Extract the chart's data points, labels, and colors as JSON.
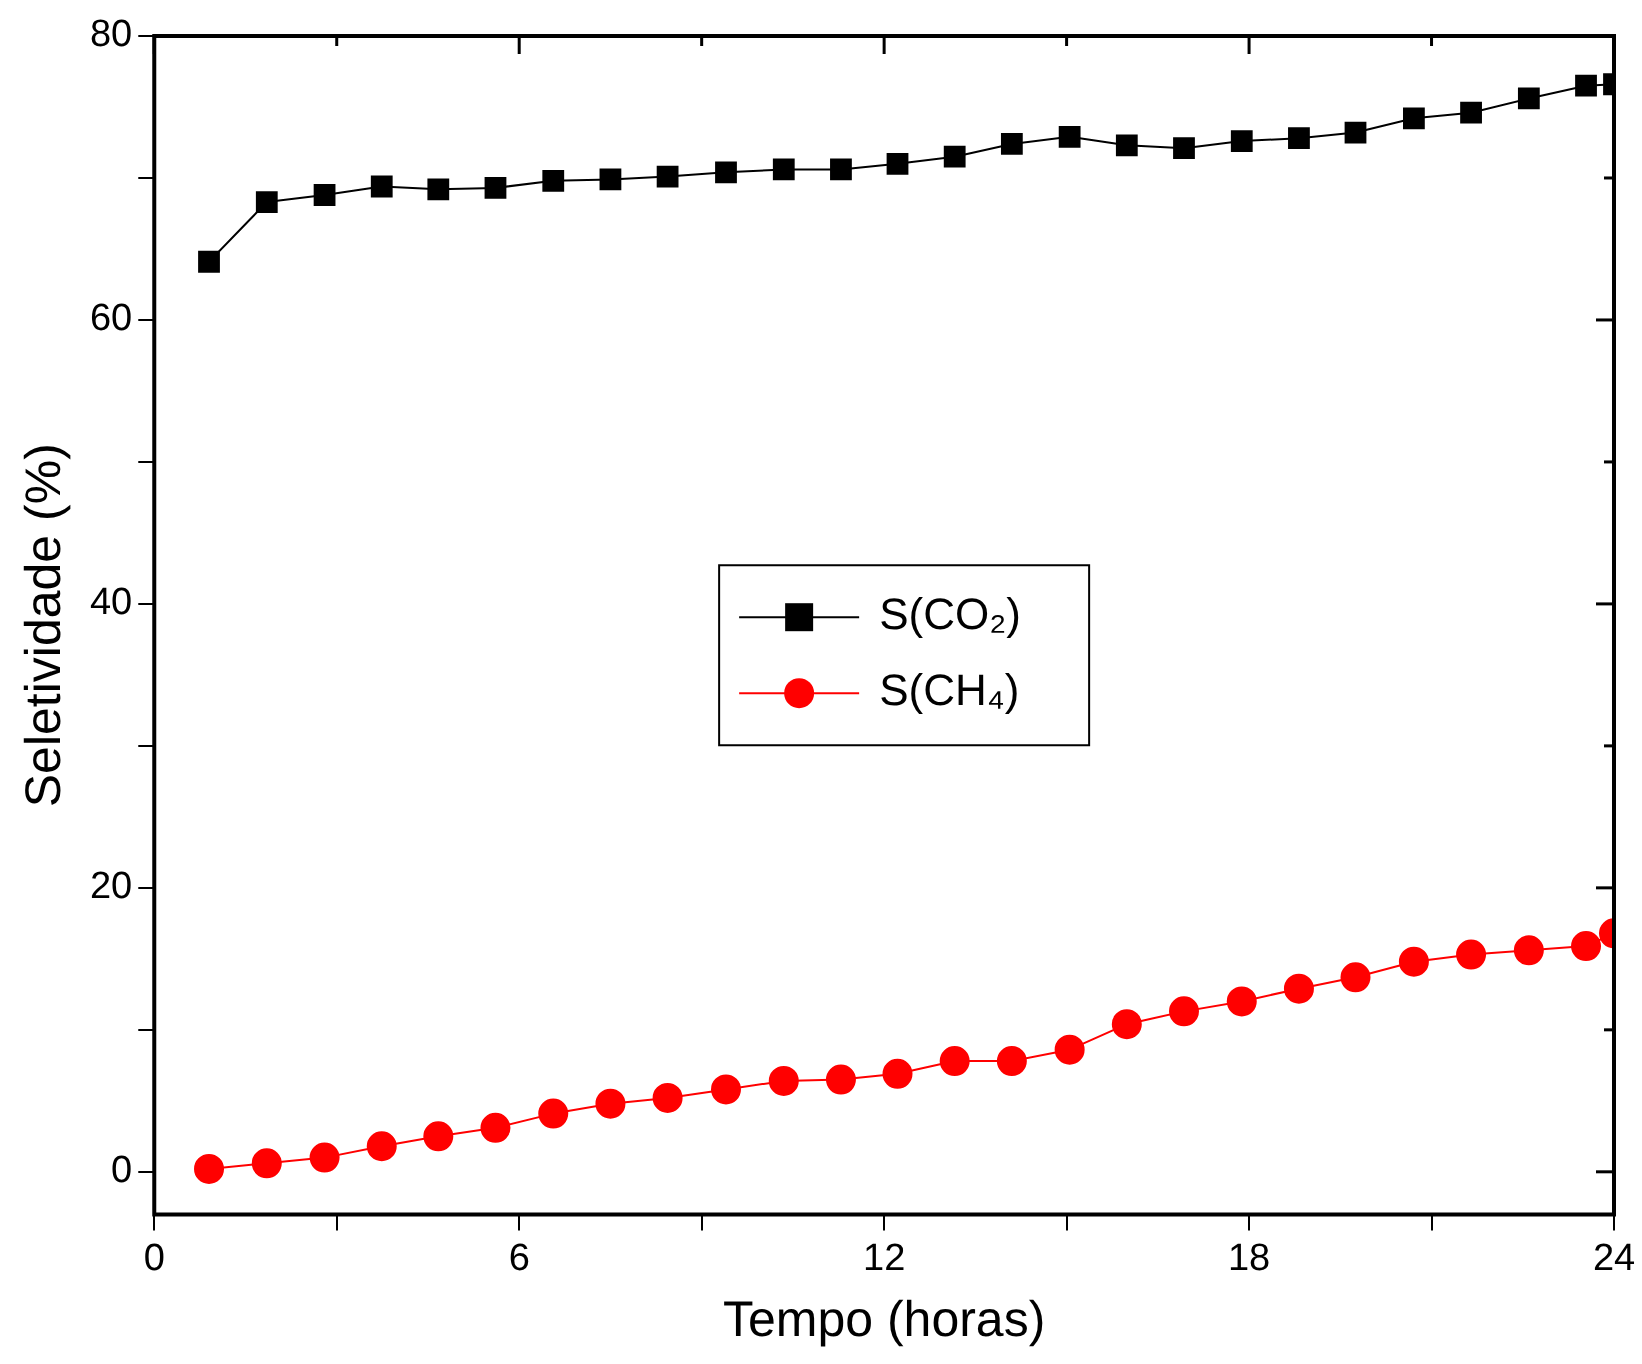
{
  "chart_data": {
    "type": "line",
    "xlabel": "Tempo (horas)",
    "ylabel": "Seletividade (%)",
    "xlim": [
      0,
      24
    ],
    "xticks": [
      0,
      {
        "value": 3,
        "label": null
      },
      6,
      {
        "value": 9,
        "label": null
      },
      12,
      {
        "value": 15,
        "label": null
      },
      18,
      {
        "value": 21,
        "label": null
      },
      24
    ],
    "ylim": [
      -3,
      80
    ],
    "yticks": [
      0,
      {
        "value": 10,
        "label": null
      },
      20,
      {
        "value": 30,
        "label": null
      },
      40,
      {
        "value": 50,
        "label": null
      },
      60,
      {
        "value": 70,
        "label": null
      },
      80
    ],
    "grid": false,
    "legend": "center",
    "x": [
      0.9,
      1.85,
      2.8,
      3.74,
      4.67,
      5.61,
      6.56,
      7.5,
      8.44,
      9.4,
      10.35,
      11.29,
      12.22,
      13.16,
      14.1,
      15.05,
      15.99,
      16.93,
      17.88,
      18.82,
      19.75,
      20.71,
      21.65,
      22.6,
      23.54,
      24
    ],
    "series": [
      {
        "name": "S(CO₂)",
        "color": "#000000",
        "marker": "square",
        "values": [
          64.1,
          68.3,
          68.8,
          69.4,
          69.2,
          69.3,
          69.8,
          69.9,
          70.1,
          70.4,
          70.6,
          70.6,
          71.0,
          71.5,
          72.4,
          72.9,
          72.3,
          72.1,
          72.6,
          72.8,
          73.2,
          74.2,
          74.6,
          75.6,
          76.5,
          76.6
        ]
      },
      {
        "name": "S(CH₄)",
        "color": "#ff0000",
        "marker": "circle",
        "values": [
          0.2,
          0.6,
          1.0,
          1.8,
          2.5,
          3.1,
          4.1,
          4.8,
          5.2,
          5.8,
          6.4,
          6.5,
          6.9,
          7.8,
          7.8,
          8.6,
          10.4,
          11.3,
          12.0,
          12.9,
          13.7,
          14.8,
          15.3,
          15.6,
          15.9,
          16.8
        ]
      }
    ]
  }
}
